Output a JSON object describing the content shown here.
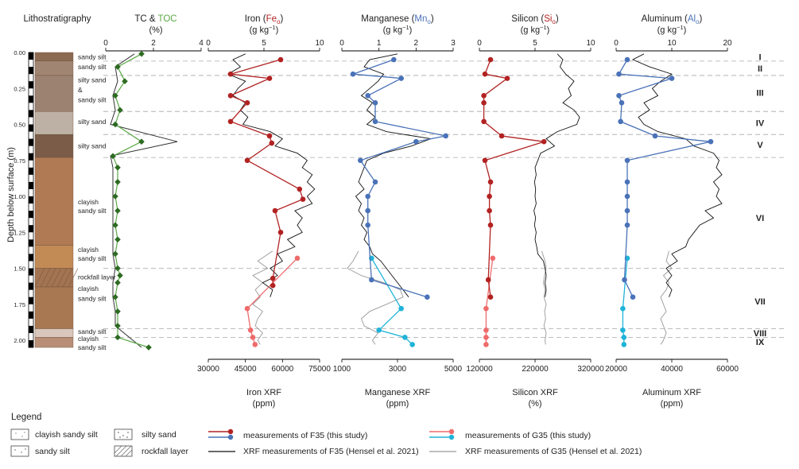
{
  "titles": {
    "lith": "Lithostratigraphy",
    "tc": "TC & ",
    "toc": "TOC",
    "tc_unit": "(%)",
    "fe": "Iron (",
    "fe_sym": "Fe",
    "fe_sub": "o",
    "mn": "Manganese (",
    "mn_sym": "Mn",
    "mn_sub": "o",
    "si": "Silicon (",
    "si_sym": "Si",
    "si_sub": "o",
    "al": "Aluminum (",
    "al_sym": "Al",
    "al_sub": "o",
    "close": ")",
    "gkg": "(g kg",
    "gkg_exp": "−1",
    "gkg_close": ")"
  },
  "y_axis_label": "Depth below surface (m)",
  "depth_ticks": [
    "0.00",
    "0.25",
    "0.50",
    "0.75",
    "1.00",
    "1.25",
    "1.50",
    "1.75",
    "2.00"
  ],
  "units_roman": [
    "I",
    "II",
    "III",
    "IV",
    "V",
    "VI",
    "VII",
    "VIII",
    "IX"
  ],
  "lith_labels": [
    "sandy silt",
    "sandy silt",
    "silty sand",
    "&",
    "sandy silt",
    "silty sand",
    "silty sand",
    "clayish",
    "sandy silt",
    "clayish",
    "sandy silt",
    "rockfall layer",
    "clayish",
    "sandy silt",
    "sandy silt",
    "clayish",
    "sandy silt"
  ],
  "bottom_axes": {
    "fe": {
      "title": "Iron XRF",
      "unit": "(ppm)",
      "ticks": [
        "30000",
        "45000",
        "60000",
        "75000"
      ]
    },
    "mn": {
      "title": "Manganese XRF",
      "unit": "(ppm)",
      "ticks": [
        "1000",
        "3000",
        "5000"
      ]
    },
    "si": {
      "title": "Silicon XRF",
      "unit": "(%)",
      "ticks": [
        "120000",
        "220000",
        "320000"
      ]
    },
    "al": {
      "title": "Aluminum XRF",
      "unit": "(ppm)",
      "ticks": [
        "20000",
        "40000",
        "60000"
      ]
    }
  },
  "top_axes": {
    "tc": [
      "0",
      "2",
      "4"
    ],
    "fe": [
      "0",
      "5",
      "10"
    ],
    "mn": [
      "0",
      "1",
      "2",
      "3"
    ],
    "si": [
      "0",
      "5",
      "10"
    ],
    "al": [
      "0",
      "10",
      "20"
    ]
  },
  "legend": {
    "title": "Legend",
    "lith": [
      "clayish sandy silt",
      "sandy silt",
      "silty sand",
      "rockfall layer"
    ],
    "f35": "measurements of F35 (this study)",
    "g35": "measurements of G35 (this study)",
    "xrf_f35": "XRF measurements of F35 (Hensel et al. 2021)",
    "xrf_g35": "XRF measurements of G35 (Hensel et al. 2021)"
  },
  "colors": {
    "f35_red": "#b22222",
    "f35_blue": "#4a72b8",
    "g35_red": "#ef6b6b",
    "g35_blue": "#1fb3d9",
    "tc": "#2e6b22",
    "toc": "#5aa845",
    "xrf_f35": "#111111",
    "xrf_g35": "#999999"
  },
  "chart_data": {
    "type": "line",
    "y_axis": "depth_m",
    "ylim": [
      0,
      2.05
    ],
    "unit_boundaries_m": [
      0.06,
      0.16,
      0.41,
      0.57,
      0.73,
      1.5,
      1.92,
      1.98
    ],
    "unit_label_depths_m": [
      0.03,
      0.11,
      0.28,
      0.49,
      0.64,
      1.15,
      1.73,
      1.95,
      2.01
    ],
    "lithology": [
      {
        "top": 0.0,
        "bottom": 0.06,
        "label": "sandy silt"
      },
      {
        "top": 0.06,
        "bottom": 0.16,
        "label": "sandy silt"
      },
      {
        "top": 0.16,
        "bottom": 0.41,
        "label": "silty sand & sandy silt"
      },
      {
        "top": 0.41,
        "bottom": 0.57,
        "label": "silty sand"
      },
      {
        "top": 0.57,
        "bottom": 0.73,
        "label": "silty sand"
      },
      {
        "top": 0.73,
        "bottom": 1.34,
        "label": "clayish sandy silt"
      },
      {
        "top": 1.34,
        "bottom": 1.5,
        "label": "clayish sandy silt"
      },
      {
        "top": 1.5,
        "bottom": 1.63,
        "label": "rockfall layer"
      },
      {
        "top": 1.63,
        "bottom": 1.92,
        "label": "clayish sandy silt"
      },
      {
        "top": 1.92,
        "bottom": 1.98,
        "label": "sandy silt"
      },
      {
        "top": 1.98,
        "bottom": 2.05,
        "label": "clayish sandy silt"
      }
    ],
    "tc_toc": {
      "xlim": [
        0,
        4
      ],
      "tc_depth": [
        0.01,
        0.1,
        0.2,
        0.3,
        0.4,
        0.5,
        0.62,
        0.72,
        0.8,
        0.9,
        1.0,
        1.1,
        1.2,
        1.3,
        1.4,
        1.5,
        1.55,
        1.6,
        1.7,
        1.8,
        1.9,
        1.98,
        2.05
      ],
      "tc": [
        1.5,
        0.5,
        0.8,
        0.4,
        0.6,
        0.4,
        1.5,
        0.3,
        0.5,
        0.5,
        0.4,
        0.5,
        0.4,
        0.5,
        0.4,
        0.5,
        0.6,
        0.5,
        0.4,
        0.5,
        0.5,
        0.5,
        1.8
      ],
      "toc_depth": [
        0.01,
        0.1,
        0.2,
        0.3,
        0.4,
        0.5,
        0.62,
        0.72,
        0.8,
        1.0,
        1.2,
        1.4,
        1.5,
        1.6,
        1.7,
        1.8,
        1.9,
        2.05
      ],
      "toc": [
        1.2,
        0.4,
        0.5,
        0.3,
        0.4,
        0.2,
        3.0,
        0.2,
        0.3,
        0.3,
        0.3,
        0.3,
        0.4,
        0.3,
        0.3,
        0.4,
        0.4,
        1.5
      ]
    },
    "fe": {
      "xlim": [
        0,
        10
      ],
      "xrf_xlim": [
        30000,
        75000
      ],
      "f35_depth": [
        0.05,
        0.15,
        0.18,
        0.3,
        0.35,
        0.48,
        0.58,
        0.63,
        0.75,
        0.95,
        1.02,
        1.1,
        1.25,
        1.57,
        1.62
      ],
      "f35": [
        6.5,
        2.0,
        5.5,
        2.0,
        3.5,
        2.0,
        5.5,
        5.7,
        3.5,
        8.2,
        8.5,
        6.0,
        6.5,
        5.8,
        5.8
      ],
      "g35_depth": [
        1.43,
        1.78,
        1.93,
        1.98,
        2.03
      ],
      "g35": [
        8.0,
        3.5,
        3.8,
        4.0,
        4.2
      ]
    },
    "mn": {
      "xlim": [
        0,
        3
      ],
      "xrf_xlim": [
        1000,
        5000
      ],
      "f35_depth": [
        0.05,
        0.15,
        0.18,
        0.3,
        0.35,
        0.48,
        0.58,
        0.62,
        0.75,
        0.9,
        1.0,
        1.1,
        1.2,
        1.58,
        1.7
      ],
      "f35": [
        1.4,
        0.3,
        1.6,
        0.7,
        0.9,
        0.9,
        2.8,
        2.0,
        0.5,
        0.9,
        0.7,
        0.7,
        0.7,
        0.8,
        2.3
      ],
      "g35_depth": [
        1.43,
        1.78,
        1.93,
        1.98,
        2.03
      ],
      "g35": [
        0.8,
        1.6,
        1.0,
        1.7,
        1.9
      ]
    },
    "si": {
      "xlim": [
        0,
        10
      ],
      "xrf_xlim": [
        120000,
        320000
      ],
      "f35_depth": [
        0.05,
        0.15,
        0.18,
        0.3,
        0.35,
        0.48,
        0.58,
        0.62,
        0.75,
        0.9,
        1.0,
        1.1,
        1.2,
        1.58,
        1.7
      ],
      "f35": [
        1.0,
        0.5,
        2.5,
        0.4,
        0.4,
        0.4,
        2.0,
        5.8,
        0.5,
        1.0,
        0.9,
        0.9,
        1.0,
        0.8,
        1.0
      ],
      "g35_depth": [
        1.43,
        1.78,
        1.93,
        1.98,
        2.03
      ],
      "g35": [
        1.2,
        0.6,
        0.6,
        0.6,
        0.6
      ]
    },
    "al": {
      "xlim": [
        0,
        20
      ],
      "xrf_xlim": [
        20000,
        60000
      ],
      "f35_depth": [
        0.05,
        0.15,
        0.18,
        0.3,
        0.35,
        0.48,
        0.58,
        0.62,
        0.75,
        0.9,
        1.0,
        1.1,
        1.2,
        1.58,
        1.7
      ],
      "f35": [
        2.0,
        0.5,
        10.0,
        0.5,
        1.0,
        0.8,
        7.0,
        17.0,
        2.0,
        2.0,
        2.0,
        2.0,
        2.0,
        1.5,
        3.0
      ],
      "g35_depth": [
        1.43,
        1.78,
        1.93,
        1.98,
        2.03
      ],
      "g35": [
        2.0,
        1.2,
        1.2,
        1.4,
        1.4
      ]
    },
    "xrf_f35_depth": [
      0.01,
      0.05,
      0.1,
      0.15,
      0.2,
      0.25,
      0.3,
      0.35,
      0.4,
      0.45,
      0.5,
      0.55,
      0.6,
      0.65,
      0.7,
      0.75,
      0.8,
      0.85,
      0.9,
      0.95,
      1.0,
      1.05,
      1.1,
      1.15,
      1.2,
      1.25,
      1.3,
      1.35,
      1.4,
      1.45,
      1.5,
      1.55,
      1.6,
      1.65,
      1.7
    ],
    "xrf_f35": {
      "fe": [
        45000,
        40000,
        43000,
        38000,
        45000,
        42000,
        40000,
        45000,
        43000,
        46000,
        44000,
        55000,
        60000,
        57000,
        66000,
        70000,
        68000,
        72000,
        70000,
        73000,
        70000,
        72000,
        65000,
        68000,
        66000,
        68000,
        62000,
        65000,
        58000,
        60000,
        55000,
        58000,
        52000,
        56000,
        55000
      ],
      "mn": [
        3000,
        2000,
        1800,
        2500,
        2300,
        2000,
        1700,
        2100,
        1900,
        2200,
        1900,
        2600,
        4200,
        3500,
        2500,
        1900,
        1800,
        1700,
        1600,
        1800,
        1500,
        1700,
        1600,
        1800,
        1700,
        1900,
        1800,
        2000,
        2100,
        2400,
        2600,
        2800,
        3000,
        3200,
        3400
      ],
      "si": [
        260000,
        270000,
        265000,
        275000,
        290000,
        280000,
        285000,
        270000,
        290000,
        300000,
        295000,
        260000,
        240000,
        255000,
        230000,
        225000,
        220000,
        222000,
        219000,
        221000,
        220000,
        222000,
        218000,
        221000,
        219000,
        222000,
        220000,
        223000,
        225000,
        235000,
        238000,
        240000,
        238000,
        240000,
        238000
      ],
      "al": [
        30000,
        26000,
        32000,
        40000,
        36000,
        33000,
        35000,
        30000,
        32000,
        28000,
        30000,
        35000,
        45000,
        48000,
        55000,
        57000,
        56000,
        58000,
        55000,
        57000,
        56000,
        58000,
        52000,
        55000,
        50000,
        48000,
        46000,
        45000,
        40000,
        42000,
        38000,
        40000,
        38000,
        40000,
        39000
      ]
    },
    "xrf_g35_depth": [
      1.38,
      1.45,
      1.5,
      1.55,
      1.6,
      1.65,
      1.7,
      1.75,
      1.8,
      1.85,
      1.9,
      1.95,
      2.0,
      2.03
    ],
    "xrf_g35": {
      "fe": [
        56000,
        50000,
        54000,
        48000,
        52000,
        49000,
        51000,
        48000,
        52000,
        50000,
        49000,
        52000,
        50000,
        51000
      ],
      "mn": [
        1600,
        1400,
        1200,
        1700,
        2500,
        3100,
        3200,
        2600,
        2000,
        1700,
        1800,
        2300,
        2100,
        2200
      ],
      "si": [
        232000,
        238000,
        240000,
        237000,
        235000,
        238000,
        236000,
        240000,
        237000,
        239000,
        236000,
        240000,
        238000,
        239000
      ],
      "al": [
        39000,
        38000,
        40000,
        37000,
        39000,
        38000,
        36000,
        37000,
        38000,
        36000,
        37000,
        38000,
        37000,
        36000
      ]
    }
  }
}
